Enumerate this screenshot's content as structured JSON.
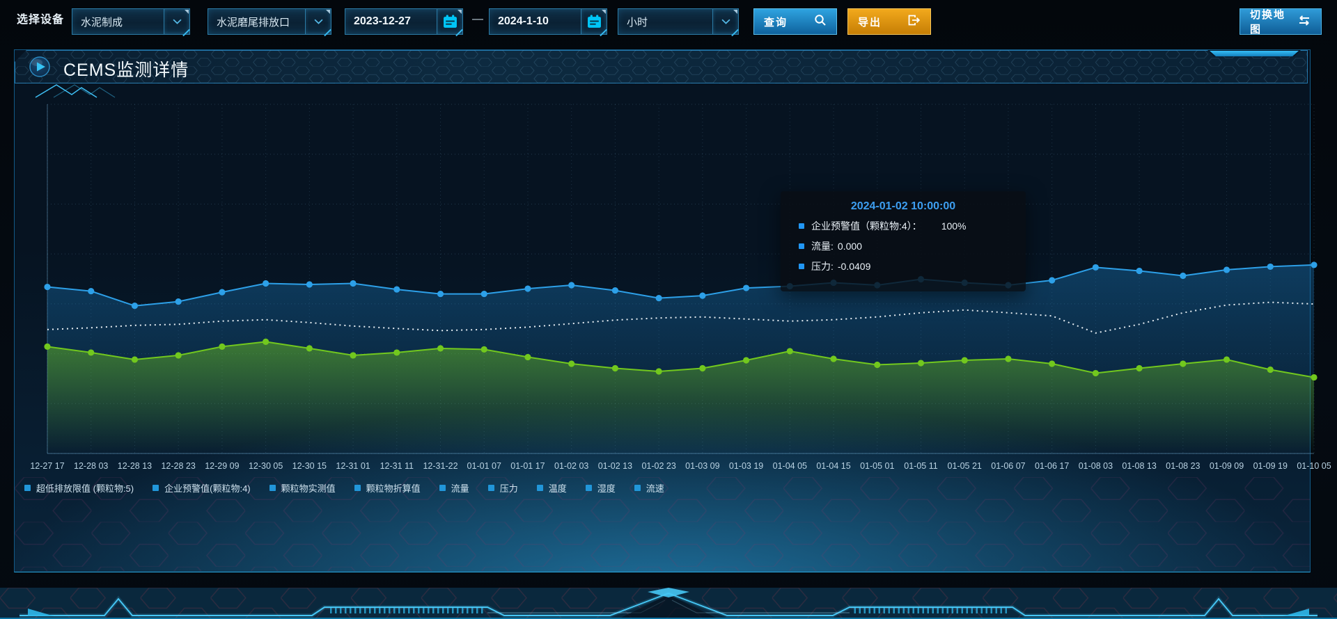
{
  "toolbar": {
    "device_label": "选择设备",
    "selects": [
      {
        "value": "水泥制成"
      },
      {
        "value": "水泥磨尾排放口"
      },
      {
        "value": "小时"
      }
    ],
    "date_start": "2023-12-27",
    "date_separator": "—",
    "date_end": "2024-1-10",
    "query_label": "查询",
    "export_label": "导出",
    "switch_map_label": "切换地图"
  },
  "panel": {
    "title": "CEMS监测详情"
  },
  "tooltip": {
    "title": "2024-01-02 10:00:00",
    "rows": [
      {
        "label": "企业预警值（颗粒物:4）：",
        "value": "100%"
      },
      {
        "label": "流量:",
        "value": "0.000"
      },
      {
        "label": "压力:",
        "value": "-0.0409"
      }
    ]
  },
  "legend": [
    "超低排放限值 (颗粒物:5)",
    "企业预警值(颗粒物:4)",
    "颗粒物实测值",
    "颗粒物折算值",
    "流量",
    "压力",
    "温度",
    "湿度",
    "流速"
  ],
  "colors": {
    "accent_blue": "#2da0e8",
    "accent_green": "#72c81e",
    "threshold_white": "#e8eff4",
    "export_orange": "#e8a013",
    "legend_marker": "#2196d9",
    "tooltip_title": "#3d9ef0",
    "calendar_icon": "#00c6f7",
    "panel_border": "#135a86"
  },
  "chart_data": {
    "type": "line",
    "categories": [
      "12-27 17",
      "12-28 03",
      "12-28 13",
      "12-28 23",
      "12-29 09",
      "12-30 05",
      "12-30 15",
      "12-31 01",
      "12-31 11",
      "12-31-22",
      "01-01 07",
      "01-01 17",
      "01-02 03",
      "01-02 13",
      "01-02 23",
      "01-03 09",
      "01-03 19",
      "01-04 05",
      "01-04 15",
      "01-05 01",
      "01-05 11",
      "01-05 21",
      "01-06 07",
      "01-06 17",
      "01-08 03",
      "01-08 13",
      "01-08 23",
      "01-09 09",
      "01-09 19",
      "01-10 05"
    ],
    "series": [
      {
        "name": "流量",
        "color": "#2da0e8",
        "style": "solid",
        "marker": true,
        "area_color": "#1a7cc0",
        "values": [
          47.7,
          46.5,
          42.3,
          43.5,
          46.2,
          48.7,
          48.4,
          48.7,
          47.0,
          45.7,
          45.7,
          47.2,
          48.2,
          46.7,
          44.5,
          45.2,
          47.4,
          47.9,
          48.9,
          48.2,
          49.9,
          48.9,
          48.2,
          49.6,
          53.3,
          52.3,
          50.9,
          52.6,
          53.5,
          54.0
        ]
      },
      {
        "name": "企业预警值(颗粒物:4)",
        "color": "#e8eff4",
        "style": "dotted",
        "marker": false,
        "area_color": null,
        "values": [
          35.5,
          36.0,
          36.7,
          37.0,
          37.9,
          38.3,
          37.5,
          36.5,
          35.8,
          35.2,
          35.5,
          36.2,
          37.2,
          38.2,
          38.8,
          39.1,
          38.5,
          37.9,
          38.3,
          39.1,
          40.3,
          41.1,
          40.3,
          39.4,
          34.5,
          37.0,
          40.3,
          42.5,
          43.3,
          42.8
        ]
      },
      {
        "name": "压力",
        "color": "#72c81e",
        "style": "solid",
        "marker": true,
        "area_color": "#6cc21e",
        "values": [
          30.6,
          28.9,
          26.9,
          28.1,
          30.6,
          32.0,
          30.1,
          28.1,
          28.9,
          30.1,
          29.8,
          27.6,
          25.7,
          24.4,
          23.5,
          24.4,
          26.7,
          29.3,
          27.1,
          25.4,
          25.9,
          26.7,
          27.1,
          25.7,
          23.0,
          24.4,
          25.7,
          26.9,
          24.0,
          21.8
        ]
      }
    ],
    "xlabel": "",
    "ylabel": "",
    "ylim": [
      0,
      100
    ],
    "grid": "dotted",
    "legend_position": "bottom"
  }
}
